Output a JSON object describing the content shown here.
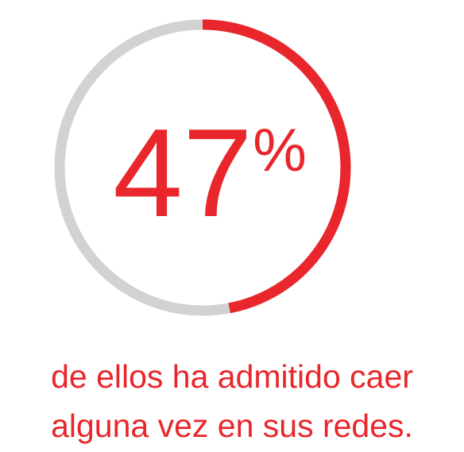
{
  "chart_data": {
    "type": "progress",
    "values": [
      47
    ],
    "unit": "%",
    "ylim": [
      0,
      100
    ],
    "color": "#e8262b",
    "track_color": "#d2d2d2",
    "caption": [
      "de ellos ha admitido caer",
      "alguna vez en sus redes."
    ]
  }
}
